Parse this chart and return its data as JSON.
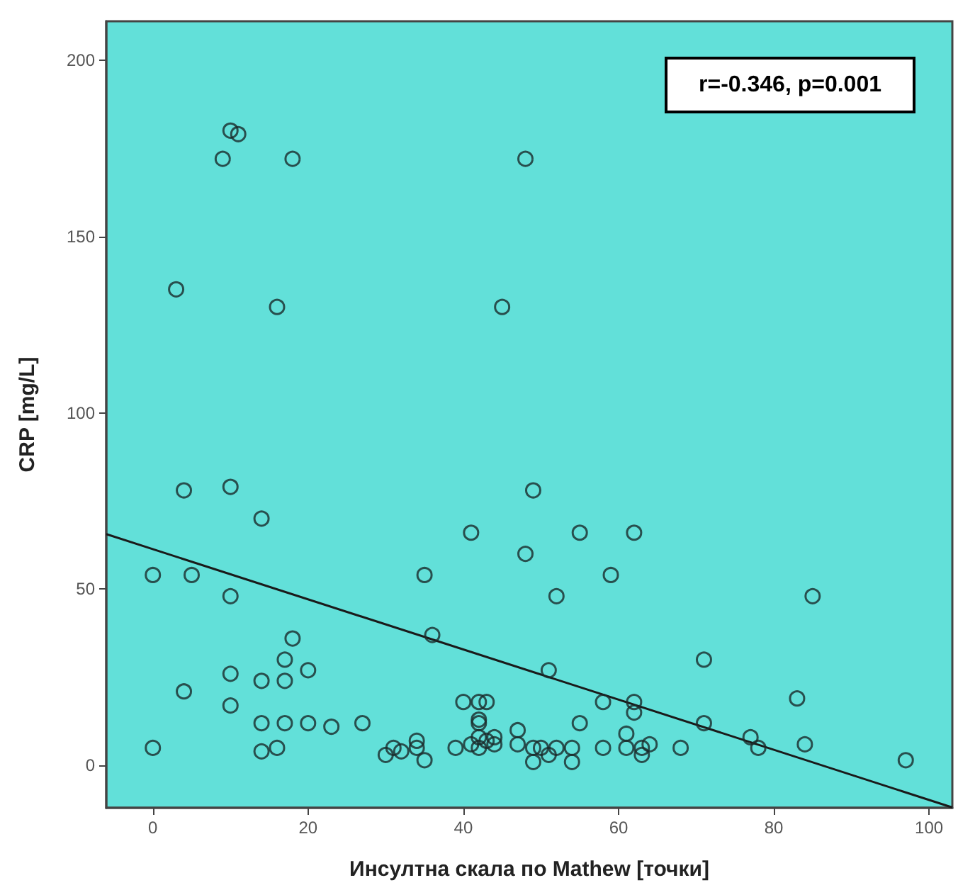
{
  "chart_data": {
    "type": "scatter",
    "xlabel": "Инсултна скала по Mathew [точки]",
    "ylabel": "CRP [mg/L]",
    "annotations": [
      "r=-0.346, p=0.001"
    ],
    "xlim": [
      -6,
      103
    ],
    "ylim": [
      -12,
      211
    ],
    "xticks": [
      0,
      20,
      40,
      60,
      80,
      100
    ],
    "yticks": [
      0,
      50,
      100,
      150,
      200
    ],
    "grid": false,
    "marker": "circle",
    "series": [
      {
        "color": "#1a2a2a",
        "x": [
          9,
          10,
          11,
          18,
          48,
          3,
          16,
          45,
          4,
          10,
          49,
          14,
          41,
          48,
          0,
          5,
          35,
          10,
          18,
          36,
          17,
          10,
          20,
          14,
          17,
          4,
          10,
          14,
          17,
          20,
          23,
          27,
          0,
          14,
          16,
          30,
          31,
          32,
          34,
          34,
          35,
          39,
          40,
          42,
          43,
          42,
          42,
          41,
          42,
          42,
          43,
          44,
          44,
          47,
          47,
          55,
          62,
          59,
          52,
          85,
          71,
          51,
          83,
          58,
          62,
          62,
          55,
          71,
          61,
          77,
          84,
          78,
          97,
          49,
          50,
          49,
          51,
          52,
          54,
          54,
          58,
          61,
          63,
          64,
          63,
          68
        ],
        "values": [
          172,
          180,
          179,
          172,
          172,
          135,
          130,
          130,
          78,
          79,
          78,
          70,
          66,
          60,
          54,
          54,
          54,
          48,
          36,
          37,
          30,
          26,
          27,
          24,
          24,
          21,
          17,
          12,
          12,
          12,
          11,
          12,
          5,
          4,
          5,
          3,
          5,
          4,
          7,
          5,
          1.5,
          5,
          18,
          18,
          18,
          13,
          12,
          6,
          8,
          5,
          7,
          8,
          6,
          10,
          6,
          66,
          66,
          54,
          48,
          48,
          30,
          27,
          19,
          18,
          18,
          15,
          12,
          12,
          9,
          8,
          6,
          5,
          1.5,
          5,
          5,
          1,
          3,
          5,
          5,
          1,
          5,
          5,
          5,
          6,
          3,
          5
        ]
      },
      {
        "type": "line",
        "color": "#1a1a1a",
        "marker": "none",
        "x": [
          -6,
          103
        ],
        "values": [
          65.6,
          -11.9
        ]
      }
    ]
  }
}
